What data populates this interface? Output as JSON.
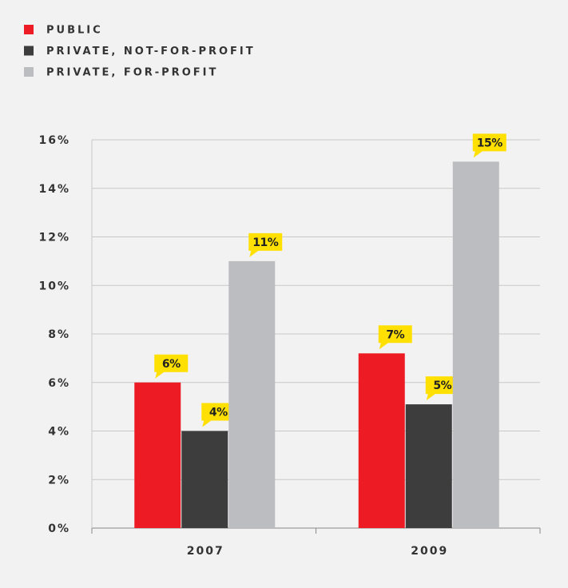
{
  "chart_data": {
    "type": "bar",
    "categories": [
      "2007",
      "2009"
    ],
    "series": [
      {
        "name": "PUBLIC",
        "color": "#ed1c24",
        "values": [
          6,
          7.2
        ],
        "value_labels": [
          "6%",
          "7%"
        ]
      },
      {
        "name": "PRIVATE, NOT-FOR-PROFIT",
        "color": "#3d3d3d",
        "values": [
          4,
          5.1
        ],
        "value_labels": [
          "4%",
          "5%"
        ]
      },
      {
        "name": "PRIVATE, FOR-PROFIT",
        "color": "#bcbdc0",
        "values": [
          11,
          15.1
        ],
        "value_labels": [
          "11%",
          "15%"
        ]
      }
    ],
    "ylim": [
      0,
      16
    ],
    "yticks": [
      {
        "value": 0,
        "label": "0%"
      },
      {
        "value": 2,
        "label": "2%"
      },
      {
        "value": 4,
        "label": "4%"
      },
      {
        "value": 6,
        "label": "6%"
      },
      {
        "value": 8,
        "label": "8%"
      },
      {
        "value": 10,
        "label": "10%"
      },
      {
        "value": 12,
        "label": "12%"
      },
      {
        "value": 14,
        "label": "14%"
      },
      {
        "value": 16,
        "label": "16%"
      }
    ],
    "grid": true,
    "legend": "top-left",
    "label_color": "#ffe000"
  }
}
